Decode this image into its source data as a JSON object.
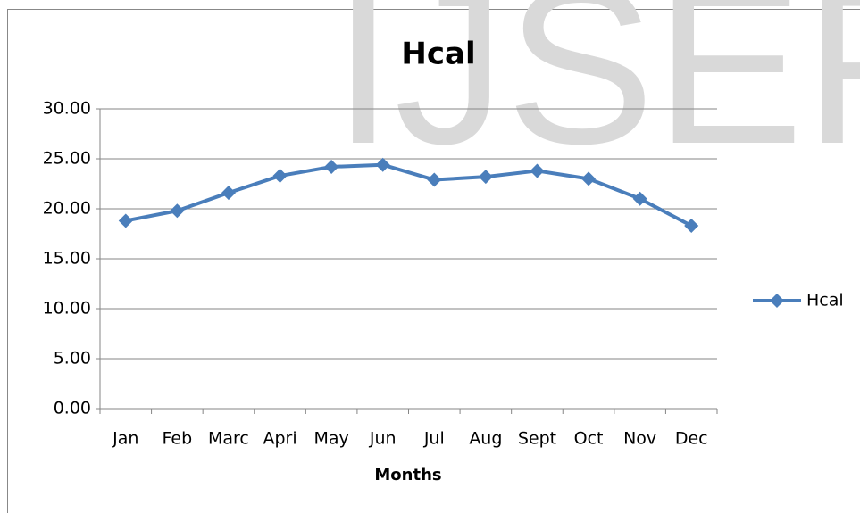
{
  "watermark": "IJSER",
  "chart_data": {
    "type": "line",
    "title": "Hcal",
    "x_label": "Months",
    "categories": [
      "Jan",
      "Feb",
      "Marc",
      "Apri",
      "May",
      "Jun",
      "Jul",
      "Aug",
      "Sept",
      "Oct",
      "Nov",
      "Dec"
    ],
    "series": [
      {
        "name": "Hcal",
        "color": "#4a7ebb",
        "values": [
          18.8,
          19.8,
          21.6,
          23.3,
          24.2,
          24.4,
          22.9,
          23.2,
          23.8,
          23.0,
          21.0,
          18.3
        ]
      }
    ],
    "ylim": [
      0,
      30
    ],
    "yticks": [
      {
        "value": 0,
        "label": "0.00"
      },
      {
        "value": 5,
        "label": "5.00"
      },
      {
        "value": 10,
        "label": "10.00"
      },
      {
        "value": 15,
        "label": "15.00"
      },
      {
        "value": 20,
        "label": "20.00"
      },
      {
        "value": 25,
        "label": "25.00"
      },
      {
        "value": 30,
        "label": "30.00"
      }
    ],
    "grid": true,
    "legend": "right"
  }
}
